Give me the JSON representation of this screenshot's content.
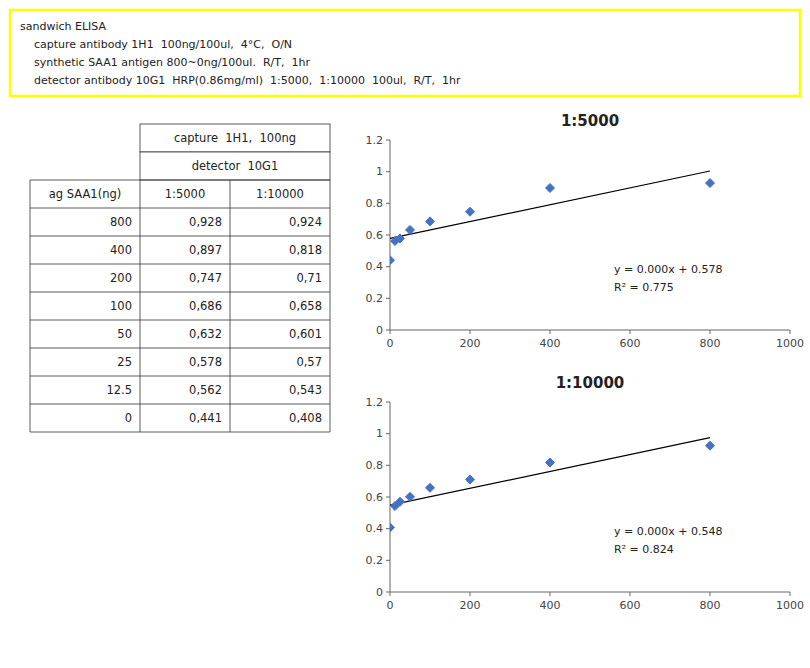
{
  "header": {
    "lines": [
      "sandwich ELISA",
      "    capture antibody 1H1  100ng/100ul,  4°C,  O/N",
      "    synthetic SAA1 antigen 800~0ng/100ul.  R/T,  1hr",
      "    detector antibody 10G1  HRP(0.86mg/ml)  1:5000,  1:10000  100ul,  R/T,  1hr"
    ],
    "color": "#FFFF00"
  },
  "table": {
    "group_headers": [
      "capture  1H1,  100ng",
      "detector  10G1"
    ],
    "columns": [
      "ag SAA1(ng)",
      "1:5000",
      "1:10000"
    ],
    "rows": [
      "800",
      "400",
      "200",
      "100",
      "50",
      "25",
      "12.5",
      "0"
    ],
    "cells": [
      [
        "0,928",
        "0,897",
        "0,747",
        "0,686",
        "0,632",
        "0,578",
        "0,562",
        "0,441"
      ],
      [
        "0,924",
        "0,818",
        "0,71",
        "0,658",
        "0,601",
        "0,57",
        "0,543",
        "0,408"
      ]
    ]
  },
  "chart_data": [
    {
      "type": "scatter",
      "title": "1:5000",
      "series": [
        {
          "type": "scatter",
          "marker": "diamond",
          "color": "#4472C4",
          "x": [
            0,
            12.5,
            25,
            50,
            100,
            200,
            400,
            800
          ],
          "values": [
            0.441,
            0.562,
            0.578,
            0.632,
            0.686,
            0.747,
            0.897,
            0.928
          ]
        },
        {
          "type": "line",
          "line_style": "solid",
          "color": "#000000",
          "x": [
            0,
            800
          ],
          "values": [
            0.5782,
            1.0042
          ]
        }
      ],
      "annotations": [
        "y = 0.000x + 0.578",
        "R² = 0.775"
      ],
      "xlim": [
        0,
        1000
      ],
      "ylim": [
        0,
        1.2
      ],
      "xticks": [
        0,
        200,
        400,
        600,
        800,
        1000
      ],
      "yticks": [
        0,
        0.2,
        0.4,
        0.6,
        0.8,
        1,
        1.2
      ],
      "grid": false
    },
    {
      "type": "scatter",
      "title": "1:10000",
      "series": [
        {
          "type": "scatter",
          "marker": "diamond",
          "color": "#4472C4",
          "x": [
            0,
            12.5,
            25,
            50,
            100,
            200,
            400,
            800
          ],
          "values": [
            0.408,
            0.543,
            0.57,
            0.601,
            0.658,
            0.71,
            0.818,
            0.924
          ]
        },
        {
          "type": "line",
          "line_style": "solid",
          "color": "#000000",
          "x": [
            0,
            800
          ],
          "values": [
            0.5482,
            0.9748
          ]
        }
      ],
      "annotations": [
        "y = 0.000x + 0.548",
        "R² = 0.824"
      ],
      "xlim": [
        0,
        1000
      ],
      "ylim": [
        0,
        1.2
      ],
      "xticks": [
        0,
        200,
        400,
        600,
        800,
        1000
      ],
      "yticks": [
        0,
        0.2,
        0.4,
        0.6,
        0.8,
        1,
        1.2
      ],
      "grid": false
    }
  ]
}
